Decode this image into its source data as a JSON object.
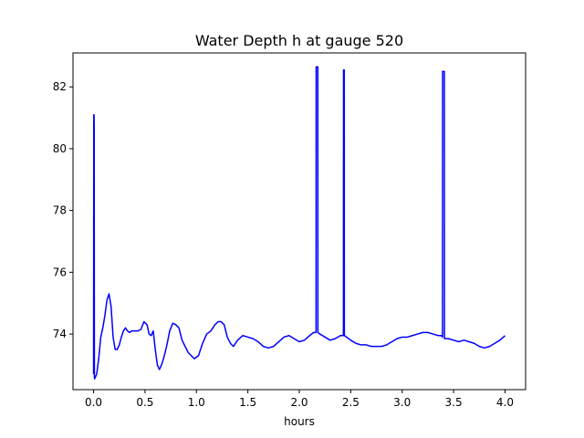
{
  "chart_data": {
    "type": "line",
    "title": "Water Depth h at gauge 520",
    "xlabel": "hours",
    "ylabel": "",
    "xlim": [
      -0.2,
      4.2
    ],
    "ylim": [
      72.2,
      83.1
    ],
    "xticks": [
      0.0,
      0.5,
      1.0,
      1.5,
      2.0,
      2.5,
      3.0,
      3.5,
      4.0
    ],
    "xtick_labels": [
      "0.0",
      "0.5",
      "1.0",
      "1.5",
      "2.0",
      "2.5",
      "3.0",
      "3.5",
      "4.0"
    ],
    "yticks": [
      74,
      76,
      78,
      80,
      82
    ],
    "ytick_labels": [
      "74",
      "76",
      "78",
      "80",
      "82"
    ],
    "grid": false,
    "series": [
      {
        "color": "#0000ff",
        "x": [
          0.0,
          0.002,
          0.004,
          0.006,
          0.008,
          0.01,
          0.03,
          0.05,
          0.07,
          0.09,
          0.11,
          0.13,
          0.15,
          0.17,
          0.19,
          0.21,
          0.23,
          0.25,
          0.27,
          0.29,
          0.31,
          0.33,
          0.35,
          0.37,
          0.4,
          0.43,
          0.46,
          0.49,
          0.52,
          0.54,
          0.56,
          0.58,
          0.6,
          0.62,
          0.64,
          0.66,
          0.68,
          0.71,
          0.74,
          0.77,
          0.8,
          0.83,
          0.86,
          0.89,
          0.92,
          0.95,
          0.98,
          1.02,
          1.06,
          1.1,
          1.14,
          1.18,
          1.21,
          1.24,
          1.27,
          1.3,
          1.33,
          1.36,
          1.4,
          1.45,
          1.5,
          1.55,
          1.6,
          1.65,
          1.7,
          1.75,
          1.8,
          1.85,
          1.9,
          1.95,
          2.0,
          2.05,
          2.1,
          2.14,
          2.163,
          2.164,
          2.18,
          2.181,
          2.2,
          2.25,
          2.3,
          2.35,
          2.4,
          2.42,
          2.429,
          2.43,
          2.437,
          2.438,
          2.46,
          2.5,
          2.55,
          2.6,
          2.65,
          2.7,
          2.75,
          2.8,
          2.85,
          2.9,
          2.95,
          3.0,
          3.05,
          3.1,
          3.15,
          3.2,
          3.25,
          3.3,
          3.35,
          3.38,
          3.392,
          3.393,
          3.41,
          3.411,
          3.42,
          3.45,
          3.5,
          3.55,
          3.6,
          3.65,
          3.7,
          3.75,
          3.8,
          3.85,
          3.9,
          3.95,
          4.0
        ],
        "y": [
          72.7,
          81.1,
          81.1,
          80.8,
          72.6,
          72.55,
          72.7,
          73.2,
          73.9,
          74.2,
          74.6,
          75.1,
          75.3,
          74.9,
          73.9,
          73.5,
          73.5,
          73.65,
          73.9,
          74.1,
          74.2,
          74.1,
          74.05,
          74.1,
          74.1,
          74.1,
          74.15,
          74.4,
          74.3,
          74.0,
          73.95,
          74.1,
          73.5,
          73.0,
          72.85,
          73.0,
          73.2,
          73.6,
          74.1,
          74.35,
          74.3,
          74.2,
          73.8,
          73.6,
          73.4,
          73.3,
          73.2,
          73.3,
          73.7,
          74.0,
          74.1,
          74.3,
          74.4,
          74.4,
          74.3,
          73.9,
          73.7,
          73.6,
          73.8,
          73.95,
          73.9,
          73.85,
          73.75,
          73.6,
          73.55,
          73.6,
          73.75,
          73.9,
          73.95,
          73.85,
          73.75,
          73.8,
          73.95,
          74.05,
          74.05,
          82.65,
          82.65,
          74.05,
          74.0,
          73.9,
          73.8,
          73.85,
          73.95,
          73.95,
          73.95,
          82.55,
          82.55,
          73.95,
          73.9,
          73.8,
          73.7,
          73.65,
          73.65,
          73.6,
          73.6,
          73.6,
          73.65,
          73.75,
          73.85,
          73.9,
          73.9,
          73.95,
          74.0,
          74.05,
          74.05,
          74.0,
          73.95,
          73.95,
          73.9,
          82.5,
          82.5,
          73.85,
          73.85,
          73.85,
          73.8,
          73.75,
          73.8,
          73.75,
          73.7,
          73.6,
          73.55,
          73.6,
          73.7,
          73.8,
          73.95
        ]
      }
    ]
  }
}
